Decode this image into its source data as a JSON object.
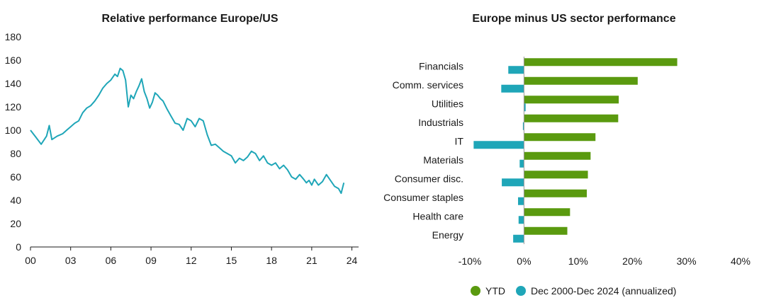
{
  "chart_data": [
    {
      "type": "line",
      "title": "Relative performance Europe/US",
      "xlabel": "",
      "ylabel": "",
      "xlim": [
        0,
        24.5
      ],
      "ylim": [
        0,
        180
      ],
      "x_ticks": [
        "00",
        "03",
        "06",
        "09",
        "12",
        "15",
        "18",
        "21",
        "24"
      ],
      "y_ticks": [
        "0",
        "20",
        "40",
        "60",
        "80",
        "100",
        "120",
        "140",
        "160",
        "180"
      ],
      "grid": false,
      "colors": {
        "line": "#1fa6b8"
      },
      "series": [
        {
          "x": [
            0,
            0.4,
            0.8,
            1.2,
            1.4,
            1.6,
            2.0,
            2.4,
            2.7,
            3.0,
            3.3,
            3.6,
            3.9,
            4.2,
            4.5,
            4.8,
            5.1,
            5.4,
            5.7,
            6.0,
            6.3,
            6.5,
            6.7,
            6.9,
            7.1,
            7.3,
            7.5,
            7.7,
            7.9,
            8.1,
            8.3,
            8.5,
            8.7,
            8.9,
            9.1,
            9.3,
            9.5,
            9.7,
            9.9,
            10.2,
            10.5,
            10.8,
            11.1,
            11.4,
            11.7,
            12.0,
            12.3,
            12.6,
            12.9,
            13.2,
            13.5,
            13.8,
            14.1,
            14.4,
            14.7,
            15.0,
            15.3,
            15.6,
            15.9,
            16.2,
            16.5,
            16.8,
            17.1,
            17.4,
            17.7,
            18.0,
            18.3,
            18.6,
            18.9,
            19.2,
            19.5,
            19.8,
            20.1,
            20.4,
            20.6,
            20.8,
            21.0,
            21.2,
            21.5,
            21.8,
            22.1,
            22.4,
            22.7,
            23.0,
            23.2,
            23.4
          ],
          "y": [
            100,
            94,
            88,
            95,
            104,
            92,
            95,
            97,
            100,
            103,
            106,
            108,
            115,
            119,
            121,
            125,
            130,
            136,
            140,
            143,
            148,
            146,
            153,
            151,
            143,
            120,
            130,
            127,
            133,
            138,
            144,
            133,
            127,
            119,
            124,
            132,
            130,
            127,
            125,
            118,
            112,
            106,
            105,
            100,
            110,
            108,
            103,
            110,
            108,
            96,
            87,
            88,
            85,
            82,
            80,
            78,
            72,
            76,
            74,
            77,
            82,
            80,
            74,
            78,
            72,
            70,
            72,
            67,
            70,
            66,
            60,
            58,
            62,
            58,
            55,
            57,
            53,
            58,
            53,
            56,
            62,
            57,
            52,
            50,
            46,
            55
          ]
        }
      ]
    },
    {
      "type": "bar",
      "orientation": "horizontal",
      "title": "Europe minus US sector performance",
      "xlabel": "",
      "ylabel": "",
      "xlim": [
        -10,
        40
      ],
      "x_ticks": [
        "-10%",
        "0%",
        "10%",
        "20%",
        "30%",
        "40%"
      ],
      "grid": false,
      "legend": "bottom",
      "categories": [
        "Financials",
        "Comm. services",
        "Utilities",
        "Industrials",
        "IT",
        "Materials",
        "Consumer disc.",
        "Consumer staples",
        "Health care",
        "Energy"
      ],
      "series": [
        {
          "name": "YTD",
          "color": "#5a9a0f",
          "values": [
            28.3,
            21.0,
            17.5,
            17.4,
            13.2,
            12.3,
            11.8,
            11.6,
            8.5,
            8.0
          ]
        },
        {
          "name": "Dec 2000-Dec 2024 (annualized)",
          "color": "#1fa6b8",
          "values": [
            -2.9,
            -4.2,
            0.3,
            -0.2,
            -9.3,
            -0.8,
            -4.1,
            -1.1,
            -1.0,
            -2.0
          ]
        }
      ]
    }
  ]
}
